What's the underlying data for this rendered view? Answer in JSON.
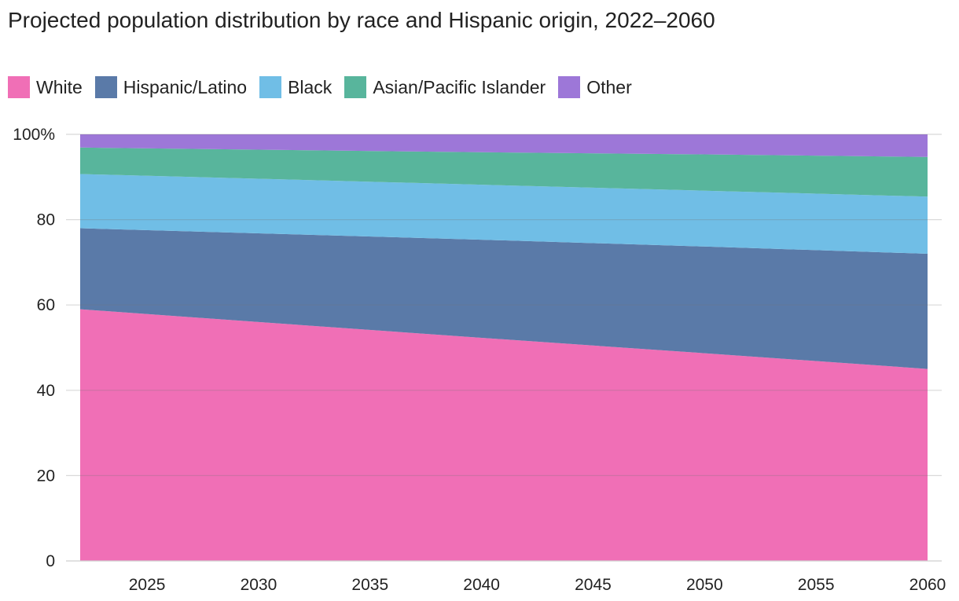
{
  "chart_data": {
    "type": "area",
    "stacked": true,
    "normalized_percent": true,
    "title": "Projected population distribution by race and Hispanic origin, 2022–2060",
    "xlabel": "",
    "ylabel": "",
    "x": [
      2022,
      2030,
      2040,
      2050,
      2060
    ],
    "xticks": [
      2025,
      2030,
      2035,
      2040,
      2045,
      2050,
      2055,
      2060
    ],
    "xlim": [
      2022,
      2060
    ],
    "ylim": [
      0,
      100
    ],
    "yticks": [
      0,
      20,
      40,
      60,
      80,
      100
    ],
    "ytick_labels": [
      "0",
      "20",
      "40",
      "60",
      "80",
      "100%"
    ],
    "grid": true,
    "legend_position": "top-left",
    "series": [
      {
        "name": "White",
        "color": "#f06fb6",
        "values": [
          59,
          56,
          52.3,
          48.7,
          45
        ]
      },
      {
        "name": "Hispanic/Latino",
        "color": "#5a7aa8",
        "values": [
          19,
          20.8,
          23,
          25,
          27
        ]
      },
      {
        "name": "Black",
        "color": "#70bee6",
        "values": [
          12.7,
          12.8,
          12.9,
          13.1,
          13.4
        ]
      },
      {
        "name": "Asian/Pacific Islander",
        "color": "#58b59c",
        "values": [
          6.2,
          6.8,
          7.6,
          8.5,
          9.3
        ]
      },
      {
        "name": "Other",
        "color": "#9d77d8",
        "values": [
          3.1,
          3.6,
          4.2,
          4.7,
          5.3
        ]
      }
    ]
  }
}
